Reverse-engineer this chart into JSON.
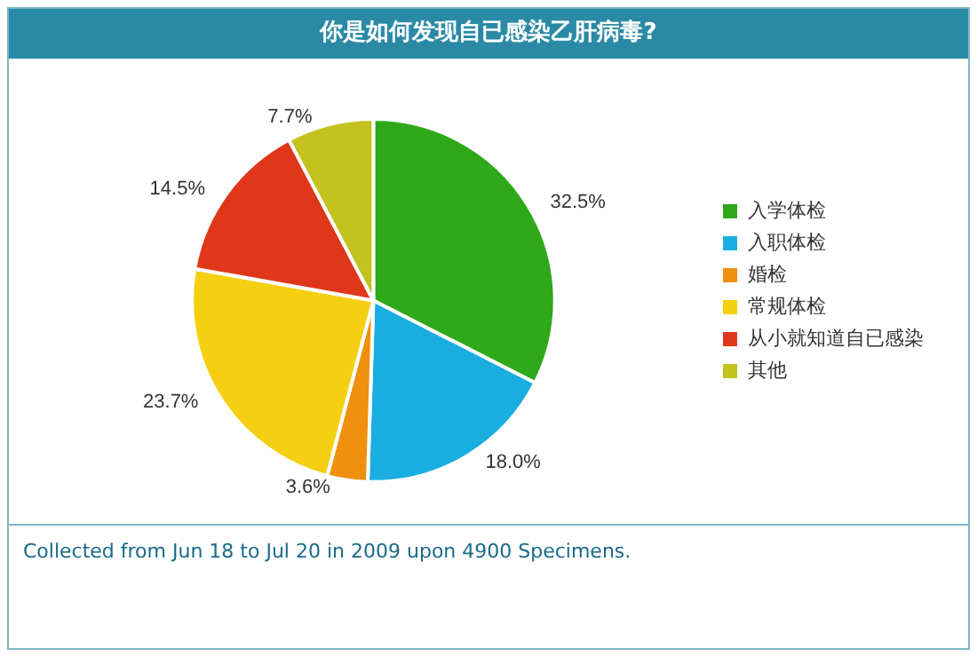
{
  "chart_data": {
    "type": "pie",
    "title": "你是如何发现自已感染乙肝病毒?",
    "categories": [
      "入学体检",
      "入职体检",
      "婚检",
      "常规体检",
      "从小就知道自已感染",
      "其他"
    ],
    "values": [
      32.5,
      18.0,
      3.6,
      23.7,
      14.5,
      7.7
    ],
    "colors": [
      "#2fa81a",
      "#1aaee0",
      "#f0900f",
      "#f5cf12",
      "#e0361a",
      "#c3c21e"
    ],
    "value_labels": [
      "32.5%",
      "18.0%",
      "3.6%",
      "23.7%",
      "14.5%",
      "7.7%"
    ],
    "legend": "right",
    "annotations": [
      "Collected from Jun 18 to Jul 20 in 2009 upon 4900 Specimens."
    ]
  }
}
